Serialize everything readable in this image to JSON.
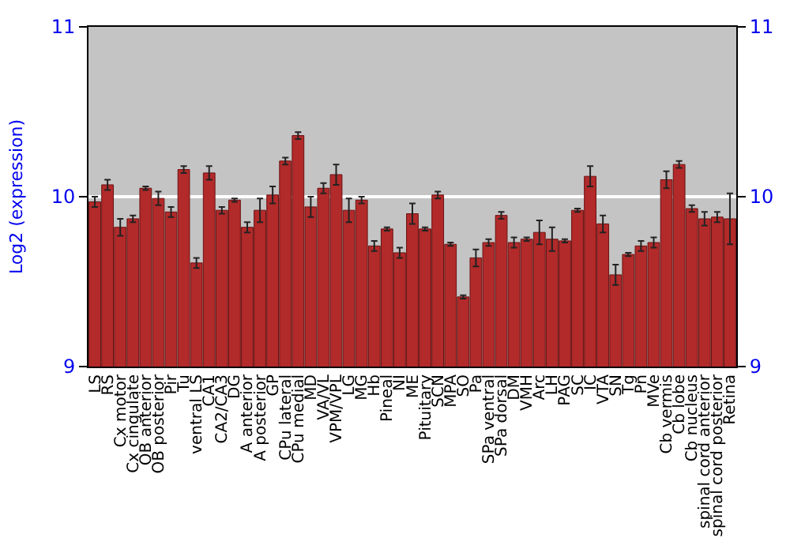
{
  "chart_data": {
    "type": "bar",
    "ylabel": "Log2 (expression)",
    "categories": [
      "LS",
      "RS",
      "Cx motor",
      "Cx cingulate",
      "OB anterior",
      "OB posterior",
      "Pir",
      "Tu",
      "ventral LS",
      "CA1",
      "CA2/CA3",
      "DG",
      "A anterior",
      "A posterior",
      "GP",
      "CPu lateral",
      "CPu medial",
      "MD",
      "VA/VL",
      "VPM/VPL",
      "LG",
      "MG",
      "Hb",
      "Pineal",
      "NI",
      "ME",
      "Pituitary",
      "SCN",
      "MPA",
      "SO",
      "Pa",
      "SPa ventral",
      "SPa dorsal",
      "DM",
      "VMH",
      "Arc",
      "LH",
      "PAG",
      "SC",
      "IC",
      "VTA",
      "SN",
      "Tg",
      "Pn",
      "MVe",
      "Cb vermis",
      "Cb lobe",
      "Cb nucleus",
      "spinal cord anterior",
      "spinal cord posterior",
      "Retina"
    ],
    "values": [
      9.97,
      10.07,
      9.82,
      9.87,
      10.05,
      9.99,
      9.91,
      10.16,
      9.61,
      10.14,
      9.92,
      9.98,
      9.82,
      9.92,
      10.01,
      10.21,
      10.36,
      9.94,
      10.05,
      10.13,
      9.92,
      9.98,
      9.71,
      9.81,
      9.67,
      9.9,
      9.81,
      10.01,
      9.72,
      9.41,
      9.64,
      9.73,
      9.89,
      9.73,
      9.75,
      9.79,
      9.75,
      9.74,
      9.92,
      10.12,
      9.84,
      9.54,
      9.66,
      9.71,
      9.73,
      10.1,
      10.19,
      9.93,
      9.87,
      9.88,
      9.87
    ],
    "errors": [
      0.03,
      0.03,
      0.05,
      0.02,
      0.01,
      0.04,
      0.03,
      0.02,
      0.03,
      0.04,
      0.02,
      0.01,
      0.03,
      0.07,
      0.05,
      0.02,
      0.02,
      0.06,
      0.03,
      0.06,
      0.07,
      0.02,
      0.03,
      0.01,
      0.03,
      0.06,
      0.01,
      0.02,
      0.01,
      0.01,
      0.05,
      0.02,
      0.02,
      0.03,
      0.01,
      0.07,
      0.07,
      0.01,
      0.01,
      0.06,
      0.05,
      0.06,
      0.01,
      0.03,
      0.03,
      0.05,
      0.02,
      0.02,
      0.04,
      0.03,
      0.15
    ],
    "color": "#b22a2a",
    "ylim": [
      9,
      11
    ],
    "yticks": [
      9,
      10,
      11
    ],
    "y2lim": [
      9,
      11
    ],
    "y2ticks": [
      9,
      10,
      11
    ],
    "grid": "y"
  }
}
